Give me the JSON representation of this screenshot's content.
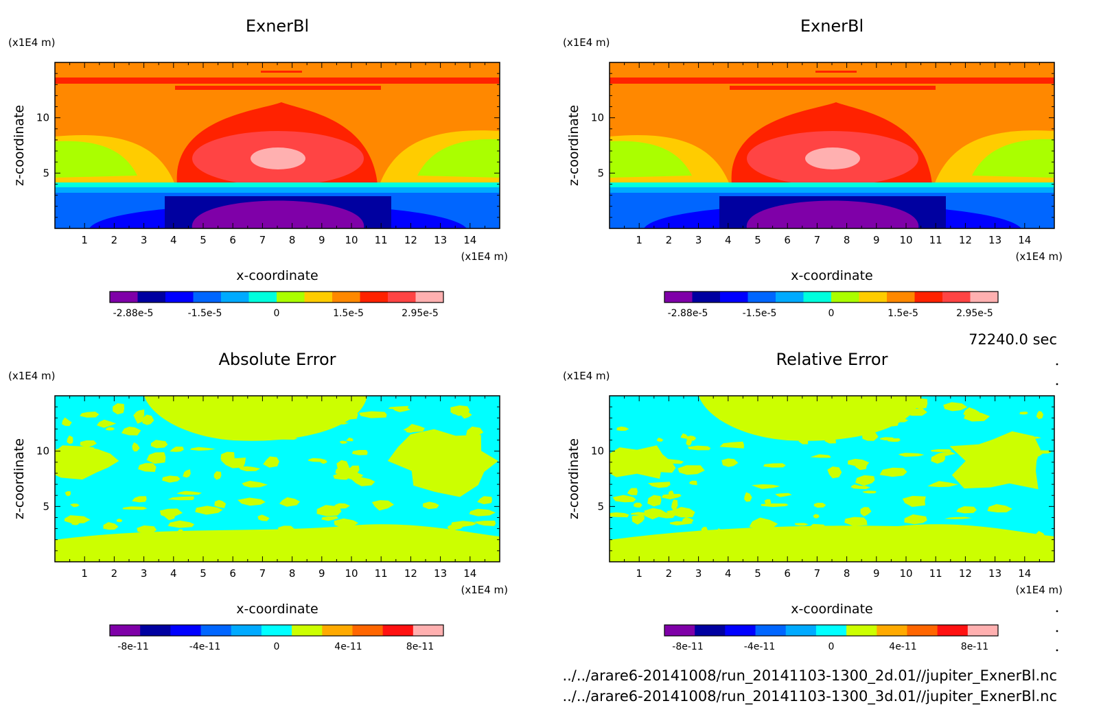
{
  "figure": {
    "time_label": "72240.0 sec",
    "files": [
      "../../arare6-20141008/run_20141103-1300_2d.01//jupiter_ExnerBl.nc",
      "../../arare6-20141008/run_20141103-1300_3d.01//jupiter_ExnerBl.nc"
    ]
  },
  "chart_data": [
    {
      "type": "heatmap",
      "title": "ExnerBl",
      "xlabel": "x-coordinate",
      "ylabel": "z-coordinate",
      "x_unit": "(x1E4 m)",
      "y_unit": "(x1E4 m)",
      "xlim": [
        0,
        15
      ],
      "ylim": [
        0,
        15
      ],
      "x_ticks": [
        1,
        2,
        3,
        4,
        5,
        6,
        7,
        8,
        9,
        10,
        11,
        12,
        13,
        14
      ],
      "y_ticks": [
        5,
        10
      ],
      "colorbar": {
        "colors": [
          "#7f00a8",
          "#0000a0",
          "#0000ff",
          "#0066ff",
          "#00aaff",
          "#00ffdd",
          "#aaff00",
          "#ffcc00",
          "#ff8800",
          "#ff2200",
          "#ff4444",
          "#ffb0b0"
        ],
        "tick_labels": [
          "-2.88e-5",
          "-1.5e-5",
          "0",
          "1.5e-5",
          "2.95e-5"
        ]
      }
    },
    {
      "type": "heatmap",
      "title": "ExnerBl",
      "xlabel": "x-coordinate",
      "ylabel": "z-coordinate",
      "x_unit": "(x1E4 m)",
      "y_unit": "(x1E4 m)",
      "xlim": [
        0,
        15
      ],
      "ylim": [
        0,
        15
      ],
      "x_ticks": [
        1,
        2,
        3,
        4,
        5,
        6,
        7,
        8,
        9,
        10,
        11,
        12,
        13,
        14
      ],
      "y_ticks": [
        5,
        10
      ],
      "colorbar": {
        "colors": [
          "#7f00a8",
          "#0000a0",
          "#0000ff",
          "#0066ff",
          "#00aaff",
          "#00ffdd",
          "#aaff00",
          "#ffcc00",
          "#ff8800",
          "#ff2200",
          "#ff4444",
          "#ffb0b0"
        ],
        "tick_labels": [
          "-2.88e-5",
          "-1.5e-5",
          "0",
          "1.5e-5",
          "2.95e-5"
        ]
      }
    },
    {
      "type": "heatmap",
      "title": "Absolute Error",
      "xlabel": "x-coordinate",
      "ylabel": "z-coordinate",
      "x_unit": "(x1E4 m)",
      "y_unit": "(x1E4 m)",
      "xlim": [
        0,
        15
      ],
      "ylim": [
        0,
        15
      ],
      "x_ticks": [
        1,
        2,
        3,
        4,
        5,
        6,
        7,
        8,
        9,
        10,
        11,
        12,
        13,
        14
      ],
      "y_ticks": [
        5,
        10
      ],
      "colorbar": {
        "colors": [
          "#7f00a8",
          "#0000a0",
          "#0000ff",
          "#0066ff",
          "#00aaff",
          "#00ffff",
          "#ccff00",
          "#ffaa00",
          "#ff6600",
          "#ff1111",
          "#ffb0b0"
        ],
        "tick_labels": [
          "-8e-11",
          "-4e-11",
          "0",
          "4e-11",
          "8e-11"
        ]
      }
    },
    {
      "type": "heatmap",
      "title": "Relative Error",
      "xlabel": "x-coordinate",
      "ylabel": "z-coordinate",
      "x_unit": "(x1E4 m)",
      "y_unit": "(x1E4 m)",
      "xlim": [
        0,
        15
      ],
      "ylim": [
        0,
        15
      ],
      "x_ticks": [
        1,
        2,
        3,
        4,
        5,
        6,
        7,
        8,
        9,
        10,
        11,
        12,
        13,
        14
      ],
      "y_ticks": [
        5,
        10
      ],
      "colorbar": {
        "colors": [
          "#7f00a8",
          "#0000a0",
          "#0000ff",
          "#0066ff",
          "#00aaff",
          "#00ffff",
          "#ccff00",
          "#ffaa00",
          "#ff6600",
          "#ff1111",
          "#ffb0b0"
        ],
        "tick_labels": [
          "-8e-11",
          "-4e-11",
          "0",
          "4e-11",
          "8e-11"
        ]
      }
    }
  ]
}
